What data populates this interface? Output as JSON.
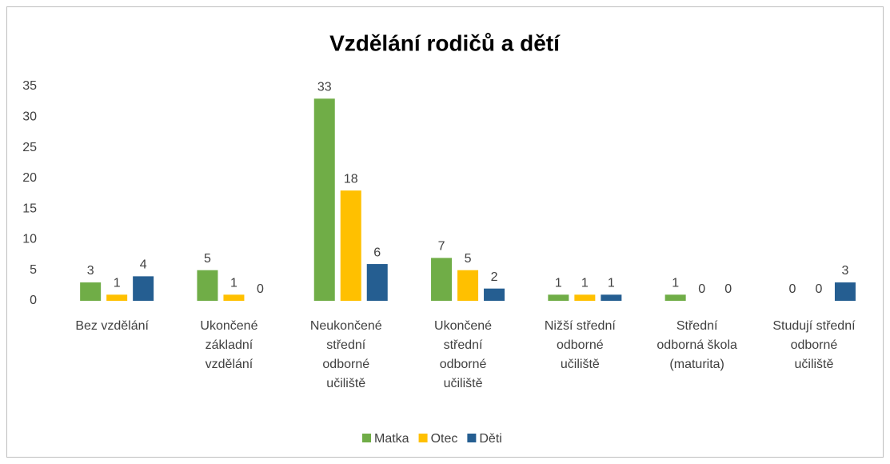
{
  "chart_data": {
    "type": "bar",
    "title": "Vzdělání rodičů a dětí",
    "categories": [
      "Bez vzdělání",
      "Ukončené\nzákladní\nvzdělání",
      "Neukončené\nstřední\nodborné\nučiliště",
      "Ukončené\nstřední\nodborné\nučiliště",
      "Nižší střední\nodborné\nučiliště",
      "Střední\nodborná škola\n(maturita)",
      "Studují střední\nodborné\nučiliště"
    ],
    "series": [
      {
        "name": "Matka",
        "color": "#70ad47",
        "values": [
          3,
          5,
          33,
          7,
          1,
          1,
          0
        ]
      },
      {
        "name": "Otec",
        "color": "#ffc000",
        "values": [
          1,
          1,
          18,
          5,
          1,
          0,
          0
        ]
      },
      {
        "name": "Děti",
        "color": "#255e91",
        "values": [
          4,
          0,
          6,
          2,
          1,
          0,
          3
        ]
      }
    ],
    "ylim": [
      0,
      35
    ],
    "yticks": [
      0,
      5,
      10,
      15,
      20,
      25,
      30,
      35
    ],
    "grid": false,
    "legend": "bottom"
  }
}
